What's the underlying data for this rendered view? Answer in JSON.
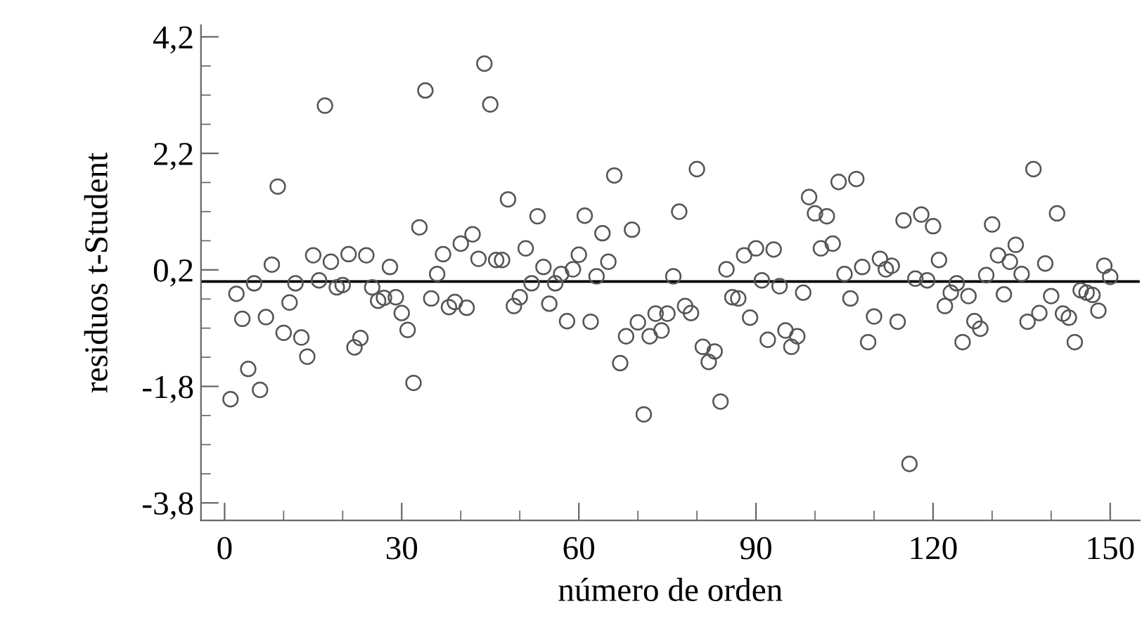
{
  "chart_data": {
    "type": "scatter",
    "xlabel": "número de orden",
    "ylabel": "residuos t-Student",
    "x": [
      1,
      2,
      3,
      4,
      5,
      6,
      7,
      8,
      9,
      10,
      11,
      12,
      13,
      14,
      15,
      16,
      17,
      18,
      19,
      20,
      21,
      22,
      23,
      24,
      25,
      26,
      27,
      28,
      29,
      30,
      31,
      32,
      33,
      34,
      35,
      36,
      37,
      38,
      39,
      40,
      41,
      42,
      43,
      44,
      45,
      46,
      47,
      48,
      49,
      50,
      51,
      52,
      53,
      54,
      55,
      56,
      57,
      58,
      59,
      60,
      61,
      62,
      63,
      64,
      65,
      66,
      67,
      68,
      69,
      70,
      71,
      72,
      73,
      74,
      75,
      76,
      77,
      78,
      79,
      80,
      81,
      82,
      83,
      84,
      85,
      86,
      87,
      88,
      89,
      90,
      91,
      92,
      93,
      94,
      95,
      96,
      97,
      98,
      99,
      100,
      101,
      102,
      103,
      104,
      105,
      106,
      107,
      108,
      109,
      110,
      111,
      112,
      113,
      114,
      115,
      116,
      117,
      118,
      119,
      120,
      121,
      122,
      123,
      124,
      125,
      126,
      127,
      128,
      129,
      130,
      131,
      132,
      133,
      134,
      135,
      136,
      137,
      138,
      139,
      140,
      141,
      142,
      143,
      144,
      145,
      146,
      147,
      148,
      149,
      150
    ],
    "series": [
      {
        "color": "#555555",
        "values": [
          -2.02,
          -0.21,
          -0.64,
          -1.5,
          -0.03,
          -1.86,
          -0.61,
          0.29,
          1.63,
          -0.88,
          -0.36,
          -0.03,
          -0.96,
          -1.29,
          0.45,
          0.02,
          3.02,
          0.34,
          -0.1,
          -0.06,
          0.47,
          -1.13,
          -0.97,
          0.45,
          -0.1,
          -0.33,
          -0.28,
          0.25,
          -0.27,
          -0.54,
          -0.83,
          -1.74,
          0.93,
          3.28,
          -0.29,
          0.13,
          0.47,
          -0.44,
          -0.35,
          0.65,
          -0.45,
          0.81,
          0.39,
          3.74,
          3.04,
          0.37,
          0.37,
          1.41,
          -0.42,
          -0.27,
          0.57,
          -0.03,
          1.12,
          0.25,
          -0.38,
          -0.03,
          0.13,
          -0.68,
          0.21,
          0.46,
          1.13,
          -0.69,
          0.09,
          0.83,
          0.34,
          1.82,
          -1.4,
          -0.94,
          0.89,
          -0.7,
          -2.28,
          -0.94,
          -0.55,
          -0.84,
          -0.55,
          0.09,
          1.2,
          -0.42,
          -0.54,
          1.93,
          -1.12,
          -1.38,
          -1.2,
          -2.06,
          0.21,
          -0.27,
          -0.29,
          0.45,
          -0.62,
          0.57,
          0.02,
          -1.0,
          0.55,
          -0.08,
          -0.84,
          -1.12,
          -0.94,
          -0.19,
          1.45,
          1.17,
          0.57,
          1.12,
          0.65,
          1.71,
          0.13,
          -0.29,
          1.76,
          0.25,
          -1.04,
          -0.6,
          0.39,
          0.21,
          0.27,
          -0.69,
          1.05,
          -3.13,
          0.05,
          1.15,
          0.02,
          0.95,
          0.37,
          -0.42,
          -0.19,
          -0.03,
          -1.04,
          -0.25,
          -0.68,
          -0.81,
          0.11,
          0.98,
          0.45,
          -0.22,
          0.34,
          0.63,
          0.13,
          -0.69,
          1.93,
          -0.54,
          0.31,
          -0.25,
          1.17,
          -0.55,
          -0.62,
          -1.04,
          -0.15,
          -0.19,
          -0.23,
          -0.5,
          0.27,
          0.08
        ]
      }
    ],
    "marker": "circle",
    "ref_lines": [
      {
        "axis": "y",
        "value": 0,
        "color": "#000000"
      }
    ],
    "xlim": [
      -4,
      155
    ],
    "ylim": [
      -4.1,
      4.4
    ],
    "xticks": [
      0,
      {
        "value": 10,
        "label": null
      },
      {
        "value": 20,
        "label": null
      },
      30,
      {
        "value": 40,
        "label": null
      },
      {
        "value": 50,
        "label": null
      },
      60,
      {
        "value": 70,
        "label": null
      },
      {
        "value": 80,
        "label": null
      },
      90,
      {
        "value": 100,
        "label": null
      },
      {
        "value": 110,
        "label": null
      },
      120,
      {
        "value": 130,
        "label": null
      },
      {
        "value": 140,
        "label": null
      },
      150
    ],
    "yticks": [
      {
        "value": -3.8,
        "label": "-3,8"
      },
      {
        "value": -3.3,
        "label": null
      },
      {
        "value": -2.8,
        "label": null
      },
      {
        "value": -2.3,
        "label": null
      },
      {
        "value": -1.8,
        "label": "-1,8"
      },
      {
        "value": -1.3,
        "label": null
      },
      {
        "value": -0.8,
        "label": null
      },
      {
        "value": -0.3,
        "label": null
      },
      {
        "value": 0.2,
        "label": "0,2"
      },
      {
        "value": 0.7,
        "label": null
      },
      {
        "value": 1.2,
        "label": null
      },
      {
        "value": 1.7,
        "label": null
      },
      {
        "value": 2.2,
        "label": "2,2"
      },
      {
        "value": 2.7,
        "label": null
      },
      {
        "value": 3.2,
        "label": null
      },
      {
        "value": 3.7,
        "label": null
      },
      {
        "value": 4.2,
        "label": "4,2"
      }
    ],
    "grid": false,
    "legend": false
  }
}
